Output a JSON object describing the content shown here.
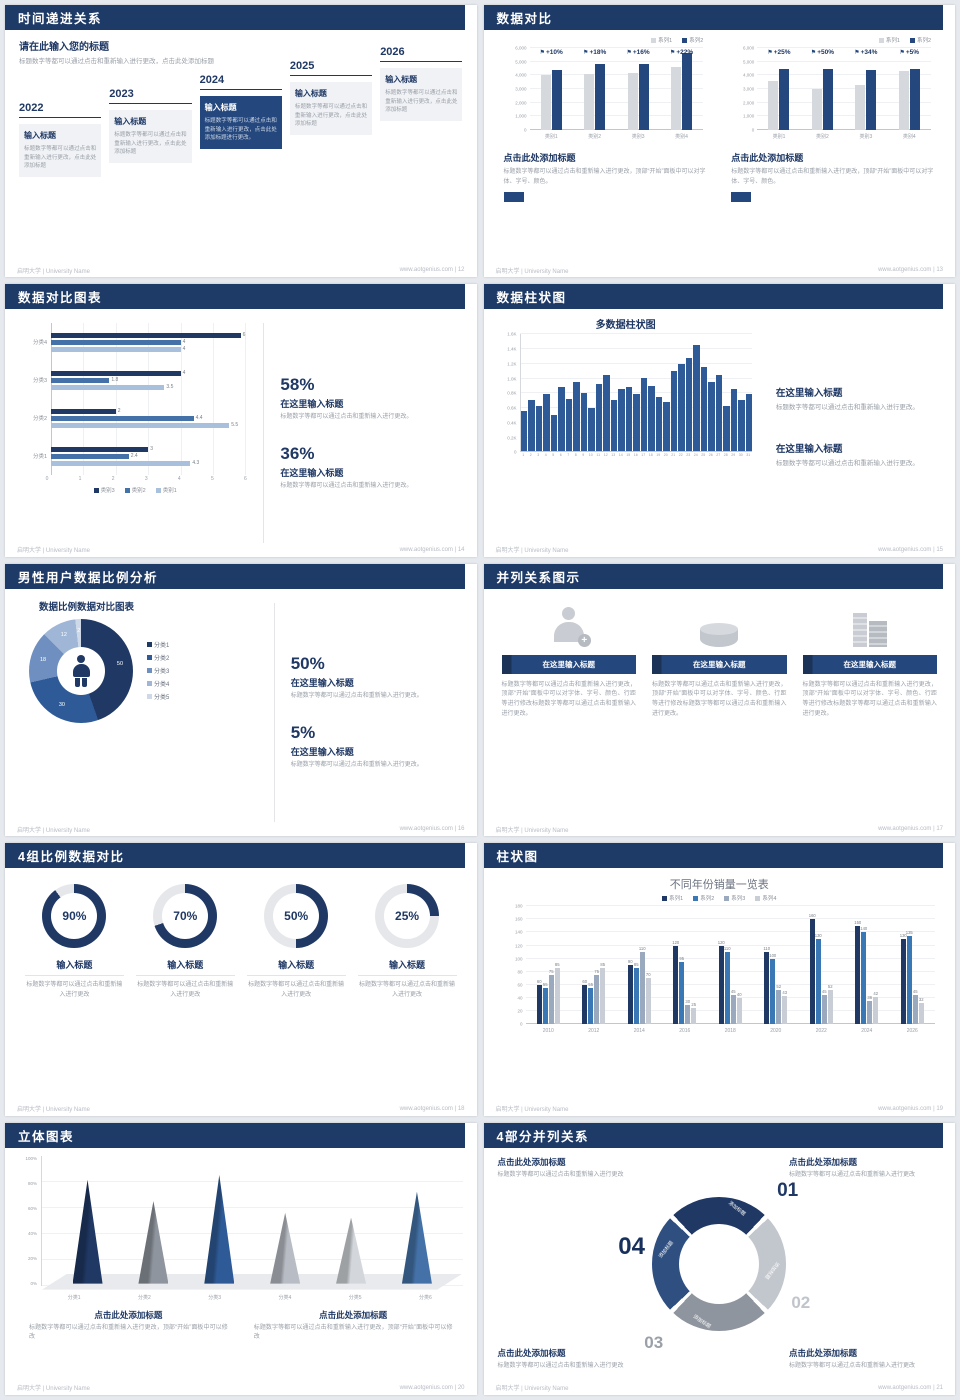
{
  "footer": {
    "school": "启明大学 | University Name",
    "site": "www.aotgenius.com"
  },
  "slides": {
    "s12": {
      "page": "12",
      "footer_right": "www.aotgenius.com | 12",
      "title": "时间递进关系",
      "heading": "请在此输入您的标题",
      "intro": "标题数字等都可以通过点击和重新输入进行更改，点击此处添加标题",
      "timeline": [
        {
          "year": "2022",
          "label": "输入标题",
          "text": "标题数字等都可以通过点击和重新输入进行更改，点击此处添加标题",
          "highlight": false
        },
        {
          "year": "2023",
          "label": "输入标题",
          "text": "标题数字等都可以通过点击和重新输入进行更改，点击此处添加标题",
          "highlight": false
        },
        {
          "year": "2024",
          "label": "输入标题",
          "text": "标题数字等都可以通过点击和重新输入进行更改，点击此处添加标题进行更改。",
          "highlight": true
        },
        {
          "year": "2025",
          "label": "输入标题",
          "text": "标题数字等都可以通过点击和重新输入进行更改，点击此处添加标题",
          "highlight": false
        },
        {
          "year": "2026",
          "label": "输入标题",
          "text": "标题数字等都可以通过点击和重新输入进行更改，点击此处添加标题",
          "highlight": false
        }
      ]
    },
    "s13": {
      "page": "13",
      "footer_right": "www.aotgenius.com | 13",
      "title": "数据对比",
      "panels": [
        {
          "heading": "点击此处添加标题",
          "text": "标题数字等都可以通过点击和重新输入进行更改，顶部“开始”面板中可以对字体、字号、颜色。"
        },
        {
          "heading": "点击此处添加标题",
          "text": "标题数字等都可以通过点击和重新输入进行更改，顶部“开始”面板中可以对字体、字号、颜色。"
        }
      ]
    },
    "s14": {
      "page": "14",
      "footer_right": "www.aotgenius.com | 14",
      "title": "数据对比图表",
      "stats": [
        {
          "pct": "58%",
          "title": "在这里输入标题",
          "text": "标题数字等都可以通过点击和重新输入进行更改。"
        },
        {
          "pct": "36%",
          "title": "在这里输入标题",
          "text": "标题数字等都可以通过点击和重新输入进行更改。"
        }
      ]
    },
    "s15": {
      "page": "15",
      "footer_right": "www.aotgenius.com | 15",
      "title": "数据柱状图",
      "blocks": [
        {
          "title": "在这里输入标题",
          "text": "标题数字等都可以通过点击和重新输入进行更改。"
        },
        {
          "title": "在这里输入标题",
          "text": "标题数字等都可以通过点击和重新输入进行更改。"
        }
      ]
    },
    "s16": {
      "page": "16",
      "footer_right": "www.aotgenius.com | 16",
      "title": "男性用户数据比例分析",
      "chart_heading": "数据比例数据对比图表",
      "center_icon": "male-icon",
      "stats": [
        {
          "pct": "50%",
          "title": "在这里输入标题",
          "text": "标题数字等都可以通过点击和重新输入进行更改。"
        },
        {
          "pct": "5%",
          "title": "在这里输入标题",
          "text": "标题数字等都可以通过点击和重新输入进行更改。"
        }
      ]
    },
    "s17": {
      "page": "17",
      "footer_right": "www.aotgenius.com | 17",
      "title": "并列关系图示",
      "items": [
        {
          "icon": "medical-person-icon",
          "banner": "在这里输入标题",
          "text": "标题数字等都可以通过点击和重新输入进行更改，顶部“开始”面板中可以对字体、字号、颜色、行距等进行修改标题数字等都可以通过点击和重新输入进行更改。"
        },
        {
          "icon": "cylinder-chart-icon",
          "banner": "在这里输入标题",
          "text": "标题数字等都可以通过点击和重新输入进行更改，顶部“开始”面板中可以对字体、字号、颜色、行距等进行修改标题数字等都可以通过点击和重新输入进行更改。"
        },
        {
          "icon": "building-icon",
          "banner": "在这里输入标题",
          "text": "标题数字等都可以通过点击和重新输入进行更改，顶部“开始”面板中可以对字体、字号、颜色、行距等进行修改标题数字等都可以通过点击和重新输入进行更改。"
        }
      ]
    },
    "s18": {
      "page": "18",
      "footer_right": "www.aotgenius.com | 18",
      "title": "4组比例数据对比",
      "items": [
        {
          "pct": "90%",
          "label": "输入标题",
          "text": "标题数字等都可以通过点击和重新输入进行更改"
        },
        {
          "pct": "70%",
          "label": "输入标题",
          "text": "标题数字等都可以通过点击和重新输入进行更改"
        },
        {
          "pct": "50%",
          "label": "输入标题",
          "text": "标题数字等都可以通过点击和重新输入进行更改"
        },
        {
          "pct": "25%",
          "label": "输入标题",
          "text": "标题数字等都可以通过点击和重新输入进行更改"
        }
      ]
    },
    "s19": {
      "page": "19",
      "footer_right": "www.aotgenius.com | 19",
      "title": "柱状图"
    },
    "s20": {
      "page": "20",
      "footer_right": "www.aotgenius.com | 20",
      "title": "立体图表",
      "blocks": [
        {
          "heading": "点击此处添加标题",
          "text": "标题数字等都可以通过点击和重新输入进行更改，顶部“开始”面板中可以修改"
        },
        {
          "heading": "点击此处添加标题",
          "text": "标题数字等都可以通过点击和重新输入进行更改，顶部“开始”面板中可以修改"
        }
      ]
    },
    "s21": {
      "page": "21",
      "footer_right": "www.aotgenius.com | 21",
      "title": "4部分并列关系",
      "blocks": [
        {
          "heading": "点击此处添加标题",
          "text": "标题数字等都可以通过点击和重新输入进行更改"
        },
        {
          "heading": "点击此处添加标题",
          "text": "标题数字等都可以通过点击和重新输入进行更改"
        },
        {
          "heading": "点击此处添加标题",
          "text": "标题数字等都可以通过点击和重新输入进行更改"
        },
        {
          "heading": "点击此处添加标题",
          "text": "标题数字等都可以通过点击和重新输入进行更改"
        }
      ]
    }
  },
  "chart_data": [
    {
      "id": "c13a",
      "type": "bar",
      "legend": "right",
      "categories": [
        "类别1",
        "类别2",
        "类别3",
        "类别4"
      ],
      "series": [
        {
          "name": "系列1",
          "values": [
            4000,
            4100,
            4200,
            4600
          ]
        },
        {
          "name": "系列2",
          "values": [
            4400,
            4850,
            4850,
            5600
          ]
        }
      ],
      "callouts": [
        "+10%",
        "+18%",
        "+16%",
        "+22%"
      ],
      "ylim": [
        0,
        6000
      ],
      "ytick_step": 1000,
      "ycomma": true
    },
    {
      "id": "c13b",
      "type": "bar",
      "legend": "right",
      "categories": [
        "类别1",
        "类别2",
        "类别3",
        "类别4"
      ],
      "series": [
        {
          "name": "系列1",
          "values": [
            3600,
            3000,
            3300,
            4300
          ]
        },
        {
          "name": "系列2",
          "values": [
            4500,
            4500,
            4400,
            4500
          ]
        }
      ],
      "callouts": [
        "+25%",
        "+50%",
        "+34%",
        "+5%"
      ],
      "ylim": [
        0,
        6000
      ],
      "ytick_step": 1000,
      "ycomma": true
    },
    {
      "id": "c14",
      "type": "barh",
      "categories": [
        "分类4",
        "分类3",
        "分类2",
        "分类1"
      ],
      "series": [
        {
          "name": "类别3",
          "values": [
            6,
            4,
            2,
            3
          ]
        },
        {
          "name": "类别2",
          "values": [
            4,
            1.8,
            4.4,
            2.4
          ]
        },
        {
          "name": "类别1",
          "values": [
            4,
            3.5,
            5.5,
            4.3
          ]
        }
      ],
      "xlim": [
        0,
        6
      ]
    },
    {
      "id": "c15",
      "type": "column",
      "title": "多数据柱状图",
      "values": [
        0.55,
        0.7,
        0.62,
        0.78,
        0.5,
        0.88,
        0.72,
        0.95,
        0.8,
        0.6,
        0.92,
        1.05,
        0.7,
        0.85,
        0.88,
        0.78,
        1.0,
        0.9,
        0.74,
        0.68,
        1.1,
        1.2,
        1.28,
        1.45,
        1.15,
        0.95,
        1.05,
        0.62,
        0.85,
        0.7,
        0.78
      ],
      "ylim": [
        0,
        1.6
      ],
      "yticks": [
        "0",
        "0.2K",
        "0.4K",
        "0.6K",
        "0.8K",
        "1.0K",
        "1.2K",
        "1.4K",
        "1.6K"
      ]
    },
    {
      "id": "c16",
      "type": "donut",
      "labels": [
        "分类1",
        "分类2",
        "分类3",
        "分类4",
        "分类5"
      ],
      "values": [
        50,
        30,
        18,
        12,
        2
      ],
      "colors": [
        "#1f3864",
        "#2e5b97",
        "#6e8fbf",
        "#9fb6d6",
        "#cdd8e8"
      ]
    },
    {
      "id": "c18",
      "type": "rings",
      "values": [
        90,
        70,
        50,
        25
      ]
    },
    {
      "id": "c19",
      "type": "bar",
      "title": "不同年份销量一览表",
      "legend": "top",
      "value_labels": true,
      "categories": [
        "2010",
        "2012",
        "2014",
        "2016",
        "2018",
        "2020",
        "2022",
        "2024",
        "2026"
      ],
      "series": [
        {
          "name": "系列1",
          "values": [
            60,
            60,
            90,
            120,
            120,
            110,
            160,
            150,
            130
          ]
        },
        {
          "name": "系列2",
          "values": [
            55,
            55,
            85,
            95,
            110,
            100,
            130,
            140,
            135
          ]
        },
        {
          "name": "系列3",
          "values": [
            75,
            75,
            110,
            30,
            45,
            52,
            45,
            36,
            45
          ]
        },
        {
          "name": "系列4",
          "values": [
            85,
            85,
            70,
            25,
            40,
            43,
            52,
            42,
            32
          ]
        }
      ],
      "ylim": [
        0,
        180
      ],
      "ytick_step": 20
    },
    {
      "id": "c20",
      "type": "cones",
      "categories": [
        "分类1",
        "分类2",
        "分类3",
        "分类4",
        "分类5",
        "分类6"
      ],
      "values": [
        88,
        70,
        92,
        60,
        56,
        78
      ],
      "yticks": [
        "100%",
        "80%",
        "60%",
        "40%",
        "20%",
        "0%"
      ],
      "colors": [
        "#1f3864",
        "#8f959e",
        "#2e5b97",
        "#b8bcc4",
        "#d3d6db",
        "#4472a8"
      ]
    },
    {
      "id": "c21",
      "type": "cycle",
      "numbers": [
        "01",
        "02",
        "03",
        "04"
      ],
      "arc_label": "添加标题",
      "colors": [
        "#1f3864",
        "#c2c6cd",
        "#8f959e",
        "#2e4f80"
      ]
    }
  ]
}
